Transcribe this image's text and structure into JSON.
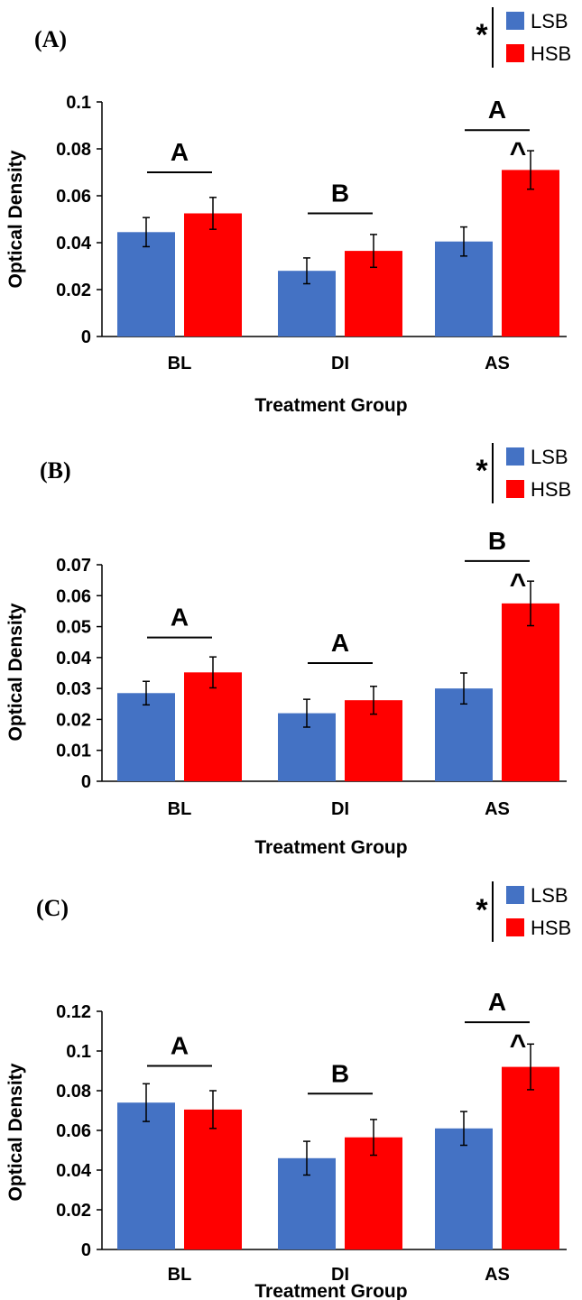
{
  "colors": {
    "LSB": "#4472C4",
    "HSB": "#FF0000"
  },
  "chart_data": [
    {
      "type": "bar",
      "panel_label": "(A)",
      "categories": [
        "BL",
        "DI",
        "AS"
      ],
      "xlabel": "Treatment Group",
      "ylabel": "Optical Density",
      "ylim": [
        0,
        0.1
      ],
      "yticks": [
        0,
        0.02,
        0.04,
        0.06,
        0.08,
        0.1
      ],
      "ytick_labels": [
        "0",
        "0.02",
        "0.04",
        "0.06",
        "0.08",
        "0.1"
      ],
      "legend": [
        "LSB",
        "HSB"
      ],
      "legend_marker": "*",
      "series": [
        {
          "name": "LSB",
          "values": [
            0.0445,
            0.028,
            0.0405
          ],
          "errors": [
            0.0062,
            0.0055,
            0.0062
          ]
        },
        {
          "name": "HSB",
          "values": [
            0.0525,
            0.0365,
            0.071
          ],
          "errors": [
            0.0068,
            0.007,
            0.0082
          ]
        }
      ],
      "group_letters": [
        "A",
        "B",
        "A"
      ],
      "group_bracket_y": [
        0.07,
        0.0525,
        0.088
      ],
      "hsb_markers": [
        "",
        "",
        "^"
      ]
    },
    {
      "type": "bar",
      "panel_label": "(B)",
      "categories": [
        "BL",
        "DI",
        "AS"
      ],
      "xlabel": "Treatment Group",
      "ylabel": "Optical Density",
      "ylim": [
        0,
        0.07
      ],
      "yticks": [
        0,
        0.01,
        0.02,
        0.03,
        0.04,
        0.05,
        0.06,
        0.07
      ],
      "ytick_labels": [
        "0",
        "0.01",
        "0.02",
        "0.03",
        "0.04",
        "0.05",
        "0.06",
        "0.07"
      ],
      "legend": [
        "LSB",
        "HSB"
      ],
      "legend_marker": "*",
      "series": [
        {
          "name": "LSB",
          "values": [
            0.0285,
            0.022,
            0.03
          ],
          "errors": [
            0.0038,
            0.0045,
            0.005
          ]
        },
        {
          "name": "HSB",
          "values": [
            0.0352,
            0.0262,
            0.0575
          ],
          "errors": [
            0.005,
            0.0045,
            0.0072
          ]
        }
      ],
      "group_letters": [
        "A",
        "A",
        "B"
      ],
      "group_bracket_y": [
        0.0465,
        0.0382,
        0.0712
      ],
      "hsb_markers": [
        "",
        "",
        "^"
      ]
    },
    {
      "type": "bar",
      "panel_label": "(C)",
      "categories": [
        "BL",
        "DI",
        "AS"
      ],
      "xlabel": "Treatment Group",
      "ylabel": "Optical Density",
      "ylim": [
        0,
        0.12
      ],
      "yticks": [
        0,
        0.02,
        0.04,
        0.06,
        0.08,
        0.1,
        0.12
      ],
      "ytick_labels": [
        "0",
        "0.02",
        "0.04",
        "0.06",
        "0.08",
        "0.1",
        "0.12"
      ],
      "legend": [
        "LSB",
        "HSB"
      ],
      "legend_marker": "*",
      "series": [
        {
          "name": "LSB",
          "values": [
            0.074,
            0.046,
            0.061
          ],
          "errors": [
            0.0095,
            0.0085,
            0.0085
          ]
        },
        {
          "name": "HSB",
          "values": [
            0.0705,
            0.0565,
            0.092
          ],
          "errors": [
            0.0095,
            0.009,
            0.0115
          ]
        }
      ],
      "group_letters": [
        "A",
        "B",
        "A"
      ],
      "group_bracket_y": [
        0.0925,
        0.0785,
        0.1145
      ],
      "hsb_markers": [
        "",
        "",
        "^"
      ]
    }
  ]
}
